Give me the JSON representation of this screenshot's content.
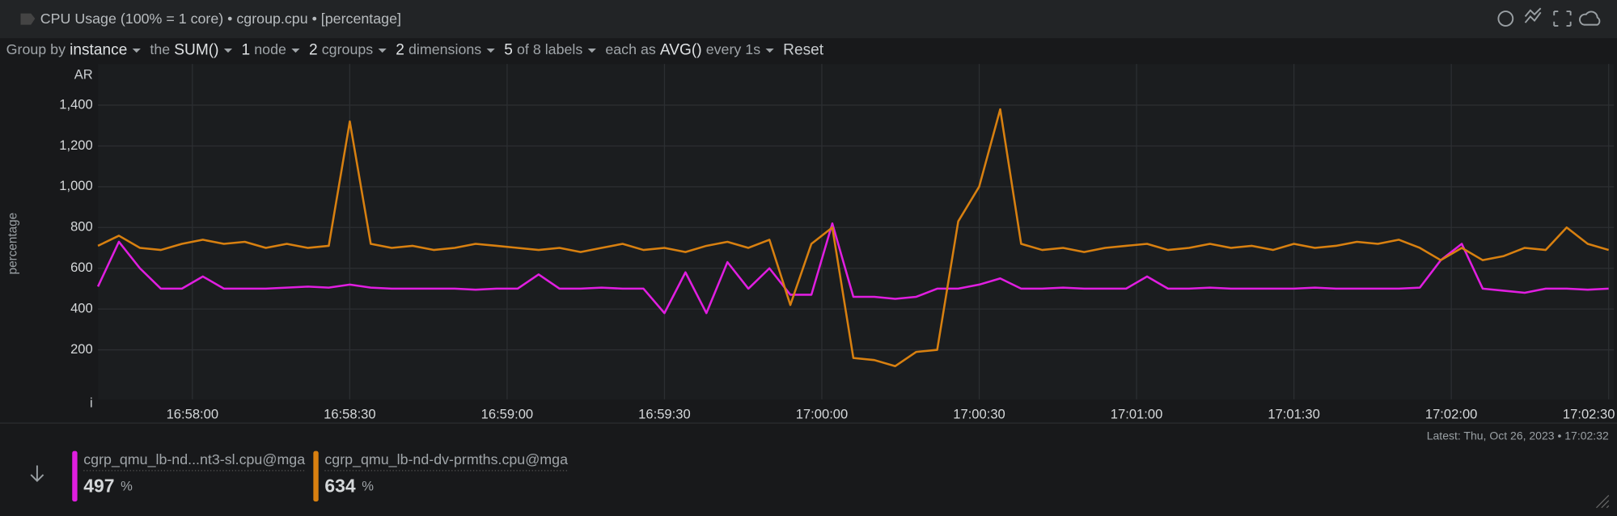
{
  "header": {
    "title": "CPU Usage (100% = 1 core) • cgroup.cpu • [percentage]"
  },
  "toolbar": [
    [
      {
        "text": "Group by",
        "bright": false
      },
      {
        "text": "instance",
        "bright": true
      }
    ],
    [
      {
        "text": "the",
        "bright": false
      },
      {
        "text": "SUM()",
        "bright": true
      }
    ],
    [
      {
        "text": "1",
        "bright": true
      },
      {
        "text": "node",
        "bright": false
      }
    ],
    [
      {
        "text": "2",
        "bright": true
      },
      {
        "text": "cgroups",
        "bright": false
      }
    ],
    [
      {
        "text": "2",
        "bright": true
      },
      {
        "text": "dimensions",
        "bright": false
      }
    ],
    [
      {
        "text": "5",
        "bright": true
      },
      {
        "text": "of 8 labels",
        "bright": false
      }
    ],
    [
      {
        "text": "each as",
        "bright": false
      },
      {
        "text": "AVG()",
        "bright": true
      },
      {
        "text": "every 1s",
        "bright": false
      }
    ]
  ],
  "reset": "Reset",
  "latest": "Latest:  Thu, Oct 26, 2023 • 17:02:32",
  "chart_data": {
    "type": "line",
    "ylabel": "percentage",
    "y_axis_top_text": "AR",
    "y_axis_bottom_text": "i",
    "ylim": [
      -43,
      1602
    ],
    "yticks": [
      200,
      400,
      600,
      800,
      {
        "value": 1000,
        "label": "1,000"
      },
      {
        "value": 1200,
        "label": "1,200"
      },
      {
        "value": 1400,
        "label": "1,400"
      }
    ],
    "xlim": [
      "16:57:42",
      "17:02:31"
    ],
    "xticks": [
      "16:58:00",
      "16:58:30",
      "16:59:00",
      "16:59:30",
      "17:00:00",
      "17:00:30",
      "17:01:00",
      "17:01:30",
      "17:02:00",
      "17:02:30"
    ],
    "grid": true,
    "x": [
      "16:57:42",
      "16:57:46",
      "16:57:50",
      "16:57:54",
      "16:57:58",
      "16:58:02",
      "16:58:06",
      "16:58:10",
      "16:58:14",
      "16:58:18",
      "16:58:22",
      "16:58:26",
      "16:58:30",
      "16:58:34",
      "16:58:38",
      "16:58:42",
      "16:58:46",
      "16:58:50",
      "16:58:54",
      "16:58:58",
      "16:59:02",
      "16:59:06",
      "16:59:10",
      "16:59:14",
      "16:59:18",
      "16:59:22",
      "16:59:26",
      "16:59:30",
      "16:59:34",
      "16:59:38",
      "16:59:42",
      "16:59:46",
      "16:59:50",
      "16:59:54",
      "16:59:58",
      "17:00:02",
      "17:00:06",
      "17:00:10",
      "17:00:14",
      "17:00:18",
      "17:00:22",
      "17:00:26",
      "17:00:30",
      "17:00:34",
      "17:00:38",
      "17:00:42",
      "17:00:46",
      "17:00:50",
      "17:00:54",
      "17:00:58",
      "17:01:02",
      "17:01:06",
      "17:01:10",
      "17:01:14",
      "17:01:18",
      "17:01:22",
      "17:01:26",
      "17:01:30",
      "17:01:34",
      "17:01:38",
      "17:01:42",
      "17:01:46",
      "17:01:50",
      "17:01:54",
      "17:01:58",
      "17:02:02",
      "17:02:06",
      "17:02:10",
      "17:02:14",
      "17:02:18",
      "17:02:22",
      "17:02:26",
      "17:02:30"
    ],
    "series": [
      {
        "name": "cgrp_qmu_lb-nd...nt3-sl.cpu@mga",
        "color": "#e01ee0",
        "latest_value": 497,
        "unit": "%",
        "values": [
          510,
          730,
          600,
          500,
          500,
          560,
          500,
          500,
          500,
          505,
          510,
          505,
          520,
          505,
          500,
          500,
          500,
          500,
          495,
          500,
          500,
          570,
          500,
          500,
          505,
          500,
          500,
          380,
          580,
          380,
          630,
          500,
          600,
          470,
          470,
          820,
          460,
          460,
          450,
          460,
          500,
          500,
          520,
          550,
          500,
          500,
          505,
          500,
          500,
          500,
          560,
          500,
          500,
          505,
          500,
          500,
          500,
          500,
          505,
          500,
          500,
          500,
          500,
          505,
          640,
          720,
          500,
          490,
          480,
          500,
          500,
          495,
          500
        ]
      },
      {
        "name": "cgrp_qmu_lb-nd-dv-prmths.cpu@mga",
        "color": "#d88010",
        "latest_value": 634,
        "unit": "%",
        "values": [
          710,
          760,
          700,
          690,
          720,
          740,
          720,
          730,
          700,
          720,
          700,
          710,
          1320,
          720,
          700,
          710,
          690,
          700,
          720,
          710,
          700,
          690,
          700,
          680,
          700,
          720,
          690,
          700,
          680,
          710,
          730,
          700,
          740,
          420,
          720,
          800,
          160,
          150,
          120,
          190,
          200,
          830,
          1000,
          1380,
          720,
          690,
          700,
          680,
          700,
          710,
          720,
          690,
          700,
          720,
          700,
          710,
          690,
          720,
          700,
          710,
          730,
          720,
          740,
          700,
          640,
          700,
          640,
          660,
          700,
          690,
          800,
          720,
          690
        ]
      }
    ]
  }
}
